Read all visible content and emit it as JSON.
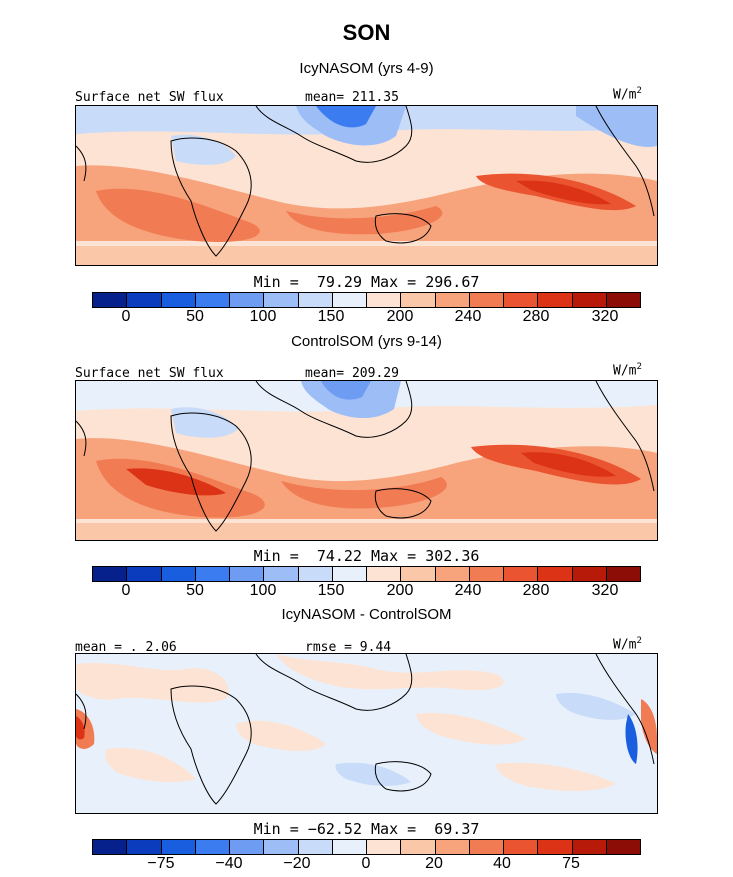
{
  "figure": {
    "title": "SON"
  },
  "panels": [
    {
      "title": "IcyNASOM (yrs 4-9)",
      "label_left": "Surface net SW flux",
      "label_mid": "mean= 211.35",
      "units": "W/m",
      "units_exp": "2",
      "min_max": "Min =  79.29 Max = 296.67",
      "colorbar_ticks": [
        "0",
        "50",
        "100",
        "150",
        "200",
        "240",
        "280",
        "320"
      ]
    },
    {
      "title": "ControlSOM (yrs 9-14)",
      "label_left": "Surface net SW flux",
      "label_mid": "mean= 209.29",
      "units": "W/m",
      "units_exp": "2",
      "min_max": "Min =  74.22 Max = 302.36",
      "colorbar_ticks": [
        "0",
        "50",
        "100",
        "150",
        "200",
        "240",
        "280",
        "320"
      ]
    },
    {
      "title": "IcyNASOM - ControlSOM",
      "label_left": "mean = . 2.06",
      "label_mid": "rmse =  9.44",
      "units": "W/m",
      "units_exp": "2",
      "min_max": "Min = −62.52 Max =  69.37",
      "colorbar_ticks": [
        "−75",
        "−40",
        "−20",
        "0",
        "20",
        "40",
        "75"
      ]
    }
  ],
  "colors": {
    "abs_scale": [
      "#06218c",
      "#0a3cbd",
      "#1a5ee0",
      "#3b7df0",
      "#6f9cf3",
      "#9dbdf6",
      "#c8dbf9",
      "#e8f1fb",
      "#fde3d3",
      "#fbc7a9",
      "#f7a37c",
      "#f17b52",
      "#ea5430",
      "#dc3215",
      "#b81a0a",
      "#8c0c06"
    ],
    "diff_scale": [
      "#06218c",
      "#0a3cbd",
      "#1a5ee0",
      "#3b7df0",
      "#6f9cf3",
      "#9dbdf6",
      "#c8dbf9",
      "#e8f1fb",
      "#fde3d3",
      "#fbc7a9",
      "#f7a37c",
      "#f17b52",
      "#ea5430",
      "#dc3215",
      "#b81a0a",
      "#8c0c06"
    ]
  }
}
